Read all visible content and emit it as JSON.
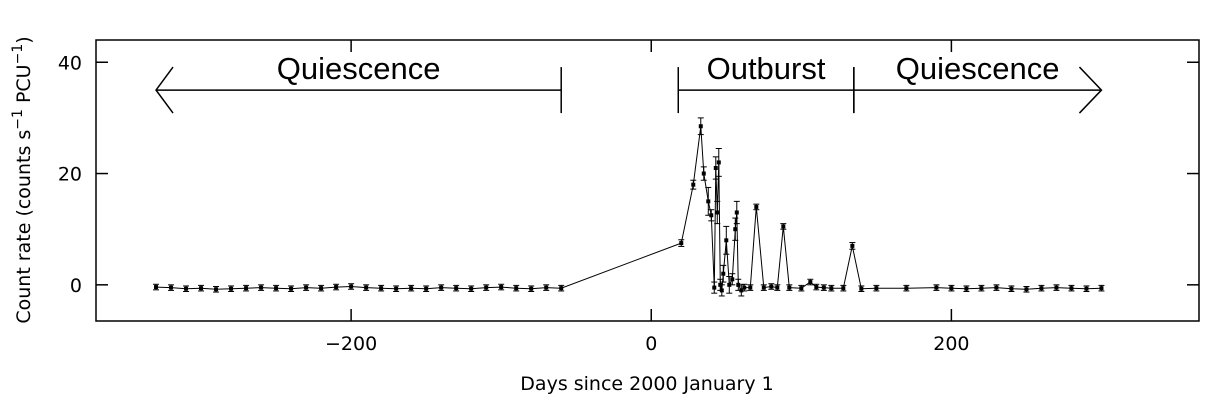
{
  "chart_data": {
    "type": "line",
    "xlabel": "Days since 2000 January 1",
    "ylabel_parts": [
      "Count rate (counts s",
      "−1",
      " PCU",
      "−1",
      ")"
    ],
    "xlim": [
      -370,
      365
    ],
    "ylim": [
      -6.5,
      44
    ],
    "xticks": [
      -200,
      0,
      200
    ],
    "xtick_labels": [
      "−200",
      "0",
      "200"
    ],
    "yticks": [
      0,
      20,
      40
    ],
    "ytick_labels": [
      "0",
      "20",
      "40"
    ],
    "regions": [
      {
        "label": "Quiescence",
        "x_start": -330,
        "x_end": -60,
        "y": 35,
        "arrow": "left"
      },
      {
        "label": "Outburst",
        "x_start": 18,
        "x_end": 135,
        "y": 35,
        "arrow": "none"
      },
      {
        "label": "Quiescence",
        "x_start": 135,
        "x_end": 300,
        "y": 35,
        "arrow": "right"
      }
    ],
    "series": [
      {
        "x": [
          -330,
          -320,
          -310,
          -300,
          -290,
          -280,
          -270,
          -260,
          -250,
          -240,
          -230,
          -220,
          -210,
          -200,
          -190,
          -180,
          -170,
          -160,
          -150,
          -140,
          -130,
          -120,
          -110,
          -100,
          -90,
          -80,
          -70,
          -60,
          20,
          28,
          33,
          35,
          38,
          40,
          42,
          43,
          44,
          45,
          46,
          47,
          48,
          50,
          52,
          54,
          56,
          57,
          58,
          60,
          62,
          66,
          70,
          75,
          80,
          84,
          88,
          92,
          100,
          106,
          110,
          115,
          120,
          128,
          134,
          140,
          150,
          170,
          190,
          200,
          210,
          220,
          230,
          240,
          250,
          260,
          270,
          280,
          290,
          300
        ],
        "y": [
          -0.4,
          -0.5,
          -0.7,
          -0.6,
          -0.8,
          -0.7,
          -0.6,
          -0.5,
          -0.6,
          -0.7,
          -0.5,
          -0.6,
          -0.4,
          -0.3,
          -0.5,
          -0.6,
          -0.7,
          -0.6,
          -0.7,
          -0.5,
          -0.6,
          -0.7,
          -0.5,
          -0.4,
          -0.6,
          -0.7,
          -0.5,
          -0.6,
          7.5,
          18,
          28.5,
          20,
          15,
          12.5,
          -0.5,
          21,
          13,
          22,
          0,
          -1,
          2,
          8,
          0,
          1,
          10,
          13,
          0,
          -1,
          -0.5,
          -0.5,
          14,
          -0.5,
          -0.3,
          -0.5,
          10.5,
          -0.5,
          -0.6,
          0.5,
          -0.4,
          -0.5,
          -0.6,
          -0.6,
          7,
          -0.7,
          -0.6,
          -0.6,
          -0.5,
          -0.6,
          -0.7,
          -0.6,
          -0.5,
          -0.7,
          -0.8,
          -0.6,
          -0.5,
          -0.6,
          -0.7,
          -0.6
        ],
        "yerr": [
          0.5,
          0.5,
          0.5,
          0.5,
          0.5,
          0.5,
          0.5,
          0.5,
          0.5,
          0.5,
          0.5,
          0.5,
          0.5,
          0.5,
          0.5,
          0.5,
          0.5,
          0.5,
          0.5,
          0.5,
          0.5,
          0.5,
          0.5,
          0.5,
          0.5,
          0.5,
          0.5,
          0.5,
          0.6,
          0.8,
          1.5,
          1.2,
          2.5,
          1,
          1,
          2,
          2,
          2.5,
          1,
          1,
          1.5,
          2.5,
          1.5,
          1,
          2,
          2,
          1,
          1,
          0.6,
          0.5,
          0.5,
          0.5,
          0.5,
          0.5,
          0.5,
          0.5,
          0.5,
          0.5,
          0.5,
          0.5,
          0.5,
          0.5,
          0.6,
          0.5,
          0.5,
          0.5,
          0.5,
          0.5,
          0.5,
          0.5,
          0.5,
          0.5,
          0.5,
          0.5,
          0.5,
          0.5,
          0.5,
          0.5
        ]
      }
    ]
  }
}
